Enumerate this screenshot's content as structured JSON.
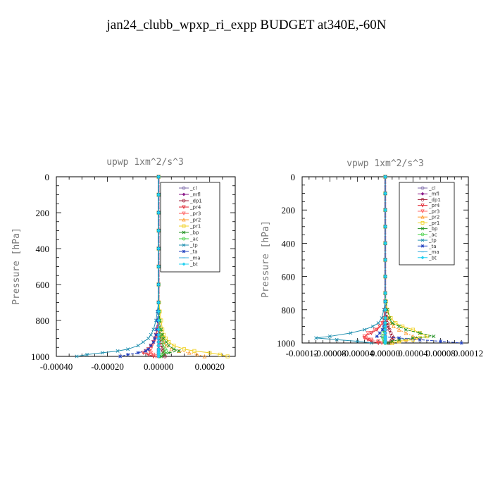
{
  "title": "jan24_clubb_wpxp_ri_expp  BUDGET at340E,-60N",
  "colors": {
    "_cl": "#7b68a8",
    "_mfl": "#8b1a89",
    "_dp1": "#a0203c",
    "_pr4": "#e0202c",
    "_pr3": "#ff5a5a",
    "_pr2": "#ff9a2a",
    "_pr1": "#f0d020",
    "_bp": "#209020",
    "_ac": "#40d040",
    "_tp": "#2090b0",
    "_ta": "#2040c0",
    "_ma": "#40b0e0",
    "_bt": "#20d0f0"
  },
  "chart_data": [
    {
      "type": "line",
      "title": "upwp   1xm^2/s^3",
      "ylabel": "Pressure [hPa]",
      "xlim": [
        -0.0004,
        0.0003
      ],
      "ylim": [
        0,
        1000
      ],
      "y_inverted": true,
      "xticks": [
        -0.0004,
        -0.0002,
        0.0,
        0.0002
      ],
      "xtick_labels": [
        "-0.00040",
        "-0.00020",
        "0.00000",
        "0.00020"
      ],
      "yticks": [
        0,
        200,
        400,
        600,
        800,
        1000
      ],
      "ytick_labels": [
        "0",
        "200",
        "400",
        "600",
        "800",
        "1000"
      ],
      "legend_position": "upper-right",
      "y": [
        0,
        100,
        200,
        300,
        400,
        500,
        600,
        700,
        750,
        800,
        850,
        880,
        900,
        920,
        940,
        960,
        970,
        980,
        990,
        1000
      ],
      "series": [
        {
          "name": "_cl",
          "values": [
            0,
            0,
            0,
            0,
            0,
            0,
            0,
            0,
            0,
            0,
            0,
            0,
            0,
            0,
            0,
            0,
            0,
            0,
            0,
            0
          ]
        },
        {
          "name": "_mfl",
          "values": [
            0,
            0,
            0,
            0,
            0,
            0,
            0,
            0,
            0,
            0,
            0,
            0,
            0,
            0,
            0,
            0,
            0,
            0,
            0,
            0
          ]
        },
        {
          "name": "_dp1",
          "values": [
            0,
            0,
            0,
            0,
            0,
            0,
            0,
            0,
            0,
            2e-06,
            4e-06,
            6e-06,
            8e-06,
            1e-05,
            1.2e-05,
            1.5e-05,
            1.8e-05,
            2e-05,
            2.2e-05,
            2.5e-05
          ]
        },
        {
          "name": "_pr4",
          "values": [
            0,
            0,
            0,
            0,
            0,
            0,
            0,
            0,
            0,
            -2e-06,
            -5e-06,
            -1e-05,
            -1.5e-05,
            -2e-05,
            -3e-05,
            -4e-05,
            -5e-05,
            -6e-05,
            -4e-05,
            -2e-05
          ]
        },
        {
          "name": "_pr3",
          "values": [
            0,
            0,
            0,
            0,
            0,
            0,
            0,
            0,
            0,
            -2e-06,
            -4e-06,
            -8e-06,
            -1.2e-05,
            -1.8e-05,
            -2.5e-05,
            -3e-05,
            -3.5e-05,
            -3e-05,
            -2e-05,
            -1e-05
          ]
        },
        {
          "name": "_pr2",
          "values": [
            0,
            0,
            0,
            0,
            0,
            0,
            0,
            0,
            2e-06,
            4e-06,
            6e-06,
            1e-05,
            1.4e-05,
            2e-05,
            3e-05,
            5e-05,
            8e-05,
            0.00012,
            0.00015,
            0.00018
          ]
        },
        {
          "name": "_pr1",
          "values": [
            0,
            0,
            0,
            0,
            0,
            0,
            0,
            2e-06,
            5e-06,
            1e-05,
            1.5e-05,
            2e-05,
            2.8e-05,
            4e-05,
            6e-05,
            0.0001,
            0.00014,
            0.0002,
            0.00024,
            0.00027
          ]
        },
        {
          "name": "_bp",
          "values": [
            0,
            0,
            0,
            0,
            0,
            0,
            0,
            0,
            2e-06,
            5e-06,
            1e-05,
            1.5e-05,
            2e-05,
            3e-05,
            4e-05,
            6e-05,
            8e-05,
            4e-05,
            2e-05,
            1e-05
          ]
        },
        {
          "name": "_ac",
          "values": [
            0,
            0,
            0,
            0,
            0,
            0,
            0,
            0,
            1e-06,
            2e-06,
            4e-06,
            6e-06,
            1e-05,
            1.5e-05,
            2e-05,
            2.5e-05,
            3e-05,
            2e-05,
            1e-05,
            5e-06
          ]
        },
        {
          "name": "_tp",
          "values": [
            0,
            0,
            0,
            0,
            0,
            0,
            0,
            0,
            -5e-06,
            -1e-05,
            -2e-05,
            -3e-05,
            -4e-05,
            -6e-05,
            -8e-05,
            -0.00012,
            -0.00016,
            -0.00022,
            -0.00028,
            -0.00032
          ]
        },
        {
          "name": "_ta",
          "values": [
            0,
            0,
            0,
            0,
            0,
            0,
            0,
            0,
            -2e-06,
            -4e-06,
            -8e-06,
            -1e-05,
            -1.5e-05,
            -2e-05,
            -3e-05,
            -4e-05,
            -5e-05,
            -8e-05,
            -0.00012,
            -0.00015
          ]
        },
        {
          "name": "_ma",
          "values": [
            0,
            0,
            0,
            0,
            0,
            0,
            0,
            0,
            0,
            0,
            0,
            0,
            0,
            0,
            0,
            0,
            0,
            0,
            0,
            0
          ]
        },
        {
          "name": "_bt",
          "values": [
            0,
            0,
            0,
            0,
            0,
            0,
            0,
            0,
            0,
            0,
            0,
            0,
            0,
            0,
            0,
            0,
            0,
            0,
            0,
            0
          ]
        }
      ]
    },
    {
      "type": "line",
      "title": "vpwp   1xm^2/s^3",
      "ylabel": "Pressure [hPa]",
      "xlim": [
        -0.00012,
        0.00012
      ],
      "ylim": [
        0,
        1000
      ],
      "y_inverted": true,
      "xticks": [
        -0.00012,
        -8e-05,
        -4e-05,
        0.0,
        4e-05,
        8e-05,
        0.00012
      ],
      "xtick_labels": [
        "-0.00012",
        "-0.00008",
        "-0.00004",
        "0.00000",
        "0.00004",
        "0.00008",
        "0.00012"
      ],
      "yticks": [
        0,
        200,
        400,
        600,
        800,
        1000
      ],
      "ytick_labels": [
        "0",
        "200",
        "400",
        "600",
        "800",
        "1000"
      ],
      "legend_position": "upper-right",
      "y": [
        0,
        100,
        200,
        300,
        400,
        500,
        600,
        700,
        750,
        800,
        850,
        880,
        900,
        920,
        940,
        960,
        970,
        980,
        990,
        1000
      ],
      "series": [
        {
          "name": "_cl",
          "values": [
            0,
            0,
            0,
            0,
            0,
            0,
            0,
            0,
            0,
            0,
            0,
            0,
            0,
            0,
            0,
            0,
            0,
            0,
            0,
            0
          ]
        },
        {
          "name": "_mfl",
          "values": [
            0,
            0,
            0,
            0,
            0,
            0,
            0,
            0,
            0,
            0,
            0,
            0,
            0,
            0,
            0,
            0,
            0,
            0,
            0,
            0
          ]
        },
        {
          "name": "_dp1",
          "values": [
            0,
            0,
            0,
            0,
            0,
            0,
            0,
            0,
            0,
            1e-06,
            2e-06,
            3e-06,
            4e-06,
            6e-06,
            8e-06,
            1e-05,
            1.2e-05,
            1e-05,
            8e-06,
            5e-06
          ]
        },
        {
          "name": "_pr4",
          "values": [
            0,
            0,
            0,
            0,
            0,
            0,
            0,
            0,
            0,
            -1e-06,
            -2e-06,
            -4e-06,
            -8e-06,
            -1.2e-05,
            -2e-05,
            -3e-05,
            -3e-05,
            -2.5e-05,
            -2e-05,
            -1e-05
          ]
        },
        {
          "name": "_pr3",
          "values": [
            0,
            0,
            0,
            0,
            0,
            0,
            0,
            0,
            0,
            -1e-06,
            -2e-06,
            -4e-06,
            -8e-06,
            -1.5e-05,
            -2.5e-05,
            -3e-05,
            -2.8e-05,
            -2e-05,
            -1e-05,
            -5e-06
          ]
        },
        {
          "name": "_pr2",
          "values": [
            0,
            0,
            0,
            0,
            0,
            0,
            0,
            0,
            0,
            2e-06,
            4e-06,
            8e-06,
            1.2e-05,
            2e-05,
            3e-05,
            4e-05,
            4.5e-05,
            3e-05,
            2e-05,
            1e-05
          ]
        },
        {
          "name": "_pr1",
          "values": [
            0,
            0,
            0,
            0,
            0,
            0,
            0,
            0,
            1e-06,
            3e-06,
            8e-06,
            1.5e-05,
            2.5e-05,
            4e-05,
            5e-05,
            6e-05,
            5e-05,
            4e-05,
            2e-05,
            1e-05
          ]
        },
        {
          "name": "_bp",
          "values": [
            0,
            0,
            0,
            0,
            0,
            0,
            0,
            0,
            1e-06,
            3e-06,
            6e-06,
            1e-05,
            2e-05,
            3e-05,
            5e-05,
            7e-05,
            4e-05,
            2e-05,
            1e-05,
            5e-06
          ]
        },
        {
          "name": "_ac",
          "values": [
            0,
            0,
            0,
            0,
            0,
            0,
            0,
            0,
            0,
            0,
            0,
            0,
            -1e-06,
            -2e-06,
            -3e-06,
            -4e-06,
            -3e-06,
            -2e-06,
            -1e-06,
            0
          ]
        },
        {
          "name": "_tp",
          "values": [
            0,
            0,
            0,
            0,
            0,
            0,
            0,
            0,
            0,
            -2e-06,
            -5e-06,
            -1e-05,
            -1.8e-05,
            -3e-05,
            -5e-05,
            -8e-05,
            -0.0001,
            -7e-05,
            -4e-05,
            -2e-05
          ]
        },
        {
          "name": "_ta",
          "values": [
            0,
            0,
            0,
            0,
            0,
            0,
            0,
            0,
            0,
            0,
            0,
            -1e-06,
            -2e-06,
            -4e-06,
            -8e-06,
            -1.2e-05,
            2e-05,
            5e-05,
            8e-05,
            0.00011
          ]
        },
        {
          "name": "_ma",
          "values": [
            0,
            0,
            0,
            0,
            0,
            0,
            0,
            0,
            0,
            0,
            0,
            0,
            0,
            0,
            0,
            0,
            0,
            0,
            0,
            0
          ]
        },
        {
          "name": "_bt",
          "values": [
            0,
            0,
            0,
            0,
            0,
            0,
            0,
            0,
            0,
            0,
            0,
            0,
            0,
            0,
            0,
            0,
            0,
            0,
            0,
            0
          ]
        }
      ]
    }
  ]
}
